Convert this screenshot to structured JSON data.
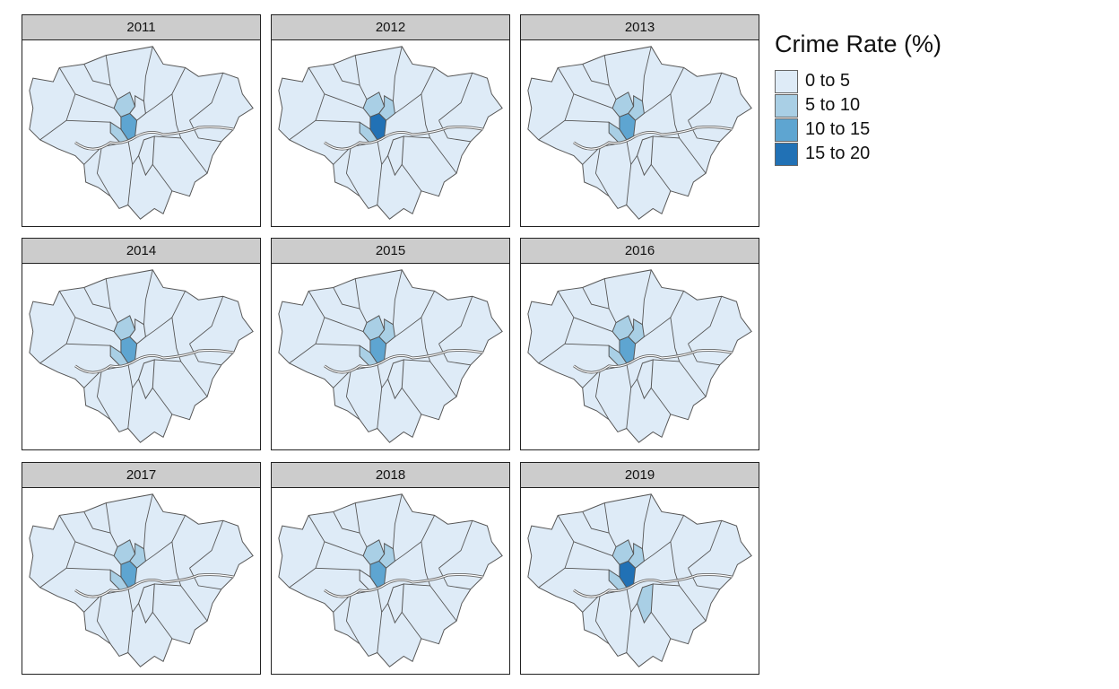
{
  "chart_data": {
    "type": "choropleth",
    "title": "Crime Rate (%)",
    "legend": {
      "title": "Crime Rate (%)",
      "placement": "right",
      "classes": [
        {
          "label": "0 to 5",
          "color": "#deebf7"
        },
        {
          "label": "5 to 10",
          "color": "#a9cfe5"
        },
        {
          "label": "10 to 15",
          "color": "#5ea5d1"
        },
        {
          "label": "15 to 20",
          "color": "#2171b5"
        }
      ]
    },
    "facets": [
      {
        "year": "2011",
        "classes": {
          "westminster": 2,
          "camden": 1,
          "islington": 0,
          "kensington": 1,
          "southwark": 0
        }
      },
      {
        "year": "2012",
        "classes": {
          "westminster": 3,
          "camden": 1,
          "islington": 1,
          "kensington": 1,
          "southwark": 0
        }
      },
      {
        "year": "2013",
        "classes": {
          "westminster": 2,
          "camden": 1,
          "islington": 1,
          "kensington": 1,
          "southwark": 0
        }
      },
      {
        "year": "2014",
        "classes": {
          "westminster": 2,
          "camden": 1,
          "islington": 0,
          "kensington": 1,
          "southwark": 0
        }
      },
      {
        "year": "2015",
        "classes": {
          "westminster": 2,
          "camden": 1,
          "islington": 1,
          "kensington": 1,
          "southwark": 0
        }
      },
      {
        "year": "2016",
        "classes": {
          "westminster": 2,
          "camden": 1,
          "islington": 1,
          "kensington": 1,
          "southwark": 0
        }
      },
      {
        "year": "2017",
        "classes": {
          "westminster": 2,
          "camden": 1,
          "islington": 1,
          "kensington": 1,
          "southwark": 0
        }
      },
      {
        "year": "2018",
        "classes": {
          "westminster": 2,
          "camden": 1,
          "islington": 1,
          "kensington": 0,
          "southwark": 0
        }
      },
      {
        "year": "2019",
        "classes": {
          "westminster": 3,
          "camden": 1,
          "islington": 1,
          "kensington": 1,
          "southwark": 1
        }
      }
    ]
  }
}
